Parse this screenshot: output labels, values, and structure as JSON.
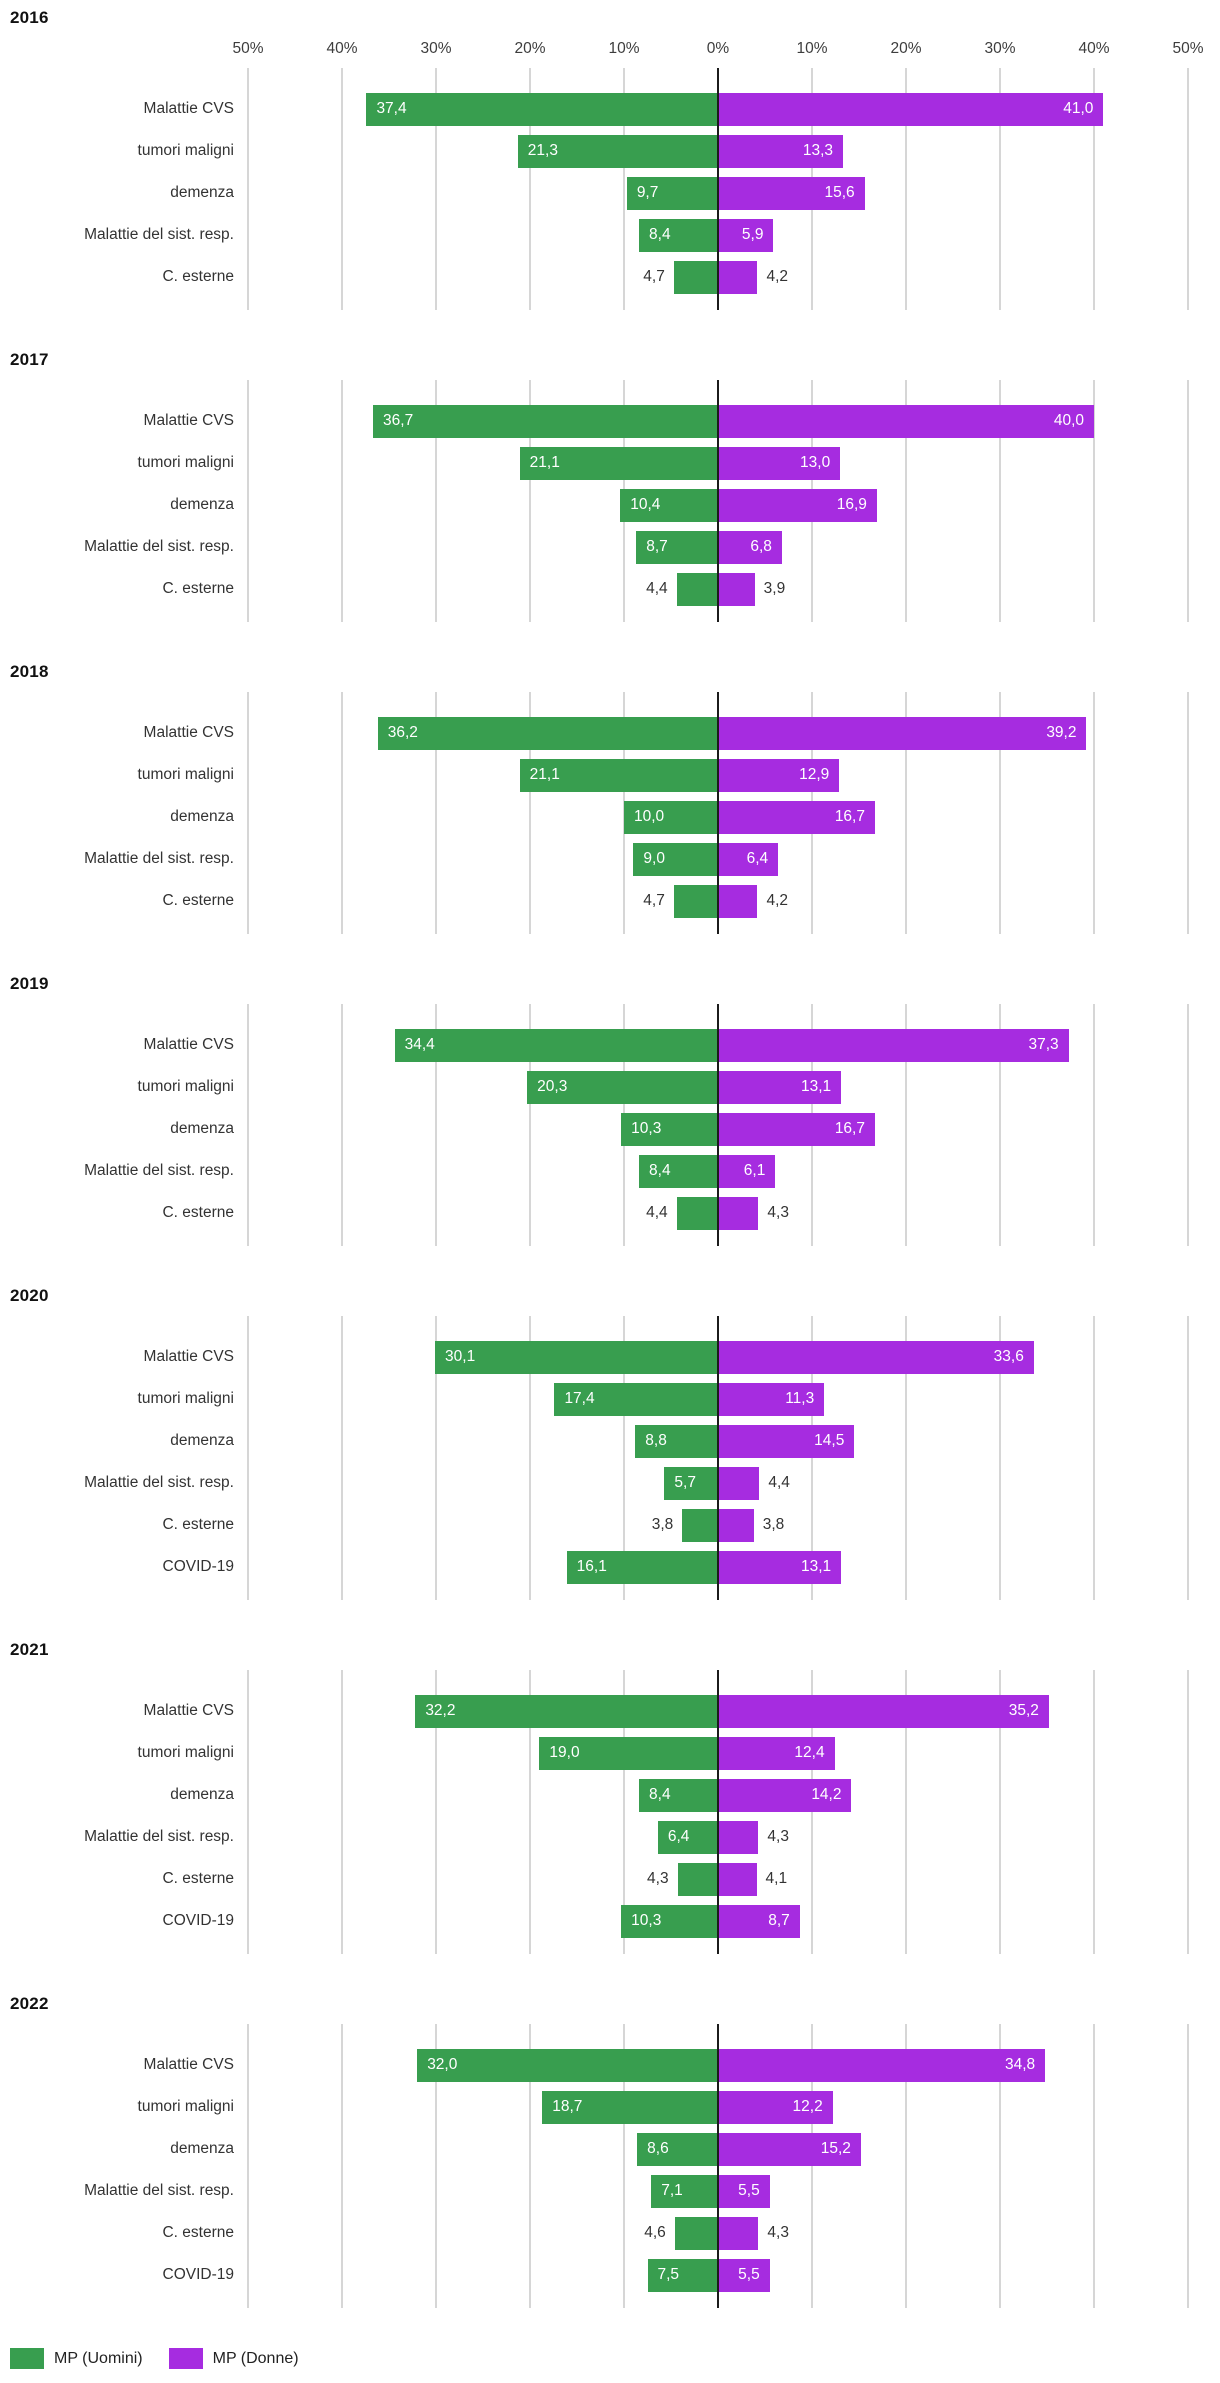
{
  "chart_data": {
    "type": "bar",
    "subtype": "diverging-horizontal-pyramid",
    "unit": "%",
    "title": "",
    "xlabel": "",
    "ylabel": "",
    "xlim": [
      -50,
      50
    ],
    "grid": true,
    "axis_ticks_display": [
      "50%",
      "40%",
      "30%",
      "20%",
      "10%",
      "0%",
      "10%",
      "20%",
      "30%",
      "40%",
      "50%"
    ],
    "axis_tick_values": [
      -50,
      -40,
      -30,
      -20,
      -10,
      0,
      10,
      20,
      30,
      40,
      50
    ],
    "legend_position": "bottom-left",
    "legend": [
      {
        "name": "MP (Uomini)",
        "color": "#389e4f"
      },
      {
        "name": "MP (Donne)",
        "color": "#a62ce0"
      }
    ],
    "decimal_separator": ",",
    "groups": [
      {
        "year": "2016",
        "categories": [
          "Malattie CVS",
          "tumori maligni",
          "demenza",
          "Malattie del sist. resp.",
          "C. esterne"
        ],
        "series": [
          {
            "name": "MP (Uomini)",
            "values": [
              37.4,
              21.3,
              9.7,
              8.4,
              4.7
            ]
          },
          {
            "name": "MP (Donne)",
            "values": [
              41.0,
              13.3,
              15.6,
              5.9,
              4.2
            ]
          }
        ]
      },
      {
        "year": "2017",
        "categories": [
          "Malattie CVS",
          "tumori maligni",
          "demenza",
          "Malattie del sist. resp.",
          "C. esterne"
        ],
        "series": [
          {
            "name": "MP (Uomini)",
            "values": [
              36.7,
              21.1,
              10.4,
              8.7,
              4.4
            ]
          },
          {
            "name": "MP (Donne)",
            "values": [
              40.0,
              13.0,
              16.9,
              6.8,
              3.9
            ]
          }
        ]
      },
      {
        "year": "2018",
        "categories": [
          "Malattie CVS",
          "tumori maligni",
          "demenza",
          "Malattie del sist. resp.",
          "C. esterne"
        ],
        "series": [
          {
            "name": "MP (Uomini)",
            "values": [
              36.2,
              21.1,
              10.0,
              9.0,
              4.7
            ]
          },
          {
            "name": "MP (Donne)",
            "values": [
              39.2,
              12.9,
              16.7,
              6.4,
              4.2
            ]
          }
        ]
      },
      {
        "year": "2019",
        "categories": [
          "Malattie CVS",
          "tumori maligni",
          "demenza",
          "Malattie del sist. resp.",
          "C. esterne"
        ],
        "series": [
          {
            "name": "MP (Uomini)",
            "values": [
              34.4,
              20.3,
              10.3,
              8.4,
              4.4
            ]
          },
          {
            "name": "MP (Donne)",
            "values": [
              37.3,
              13.1,
              16.7,
              6.1,
              4.3
            ]
          }
        ]
      },
      {
        "year": "2020",
        "categories": [
          "Malattie CVS",
          "tumori maligni",
          "demenza",
          "Malattie del sist. resp.",
          "C. esterne",
          "COVID-19"
        ],
        "series": [
          {
            "name": "MP (Uomini)",
            "values": [
              30.1,
              17.4,
              8.8,
              5.7,
              3.8,
              16.1
            ]
          },
          {
            "name": "MP (Donne)",
            "values": [
              33.6,
              11.3,
              14.5,
              4.4,
              3.8,
              13.1
            ]
          }
        ]
      },
      {
        "year": "2021",
        "categories": [
          "Malattie CVS",
          "tumori maligni",
          "demenza",
          "Malattie del sist. resp.",
          "C. esterne",
          "COVID-19"
        ],
        "series": [
          {
            "name": "MP (Uomini)",
            "values": [
              32.2,
              19.0,
              8.4,
              6.4,
              4.3,
              10.3
            ]
          },
          {
            "name": "MP (Donne)",
            "values": [
              35.2,
              12.4,
              14.2,
              4.3,
              4.1,
              8.7
            ]
          }
        ]
      },
      {
        "year": "2022",
        "categories": [
          "Malattie CVS",
          "tumori maligni",
          "demenza",
          "Malattie del sist. resp.",
          "C. esterne",
          "COVID-19"
        ],
        "series": [
          {
            "name": "MP (Uomini)",
            "values": [
              32.0,
              18.7,
              8.6,
              7.1,
              4.6,
              7.5
            ]
          },
          {
            "name": "MP (Donne)",
            "values": [
              34.8,
              12.2,
              15.2,
              5.5,
              4.3,
              5.5
            ]
          }
        ]
      }
    ],
    "colors": {
      "uomini_green": "#389e4f",
      "donne_purple": "#a62ce0",
      "gridline": "#d6d6d6",
      "zero_line": "#1c1c1c",
      "label_inside": "#ffffff",
      "label_outside": "#333333"
    }
  }
}
